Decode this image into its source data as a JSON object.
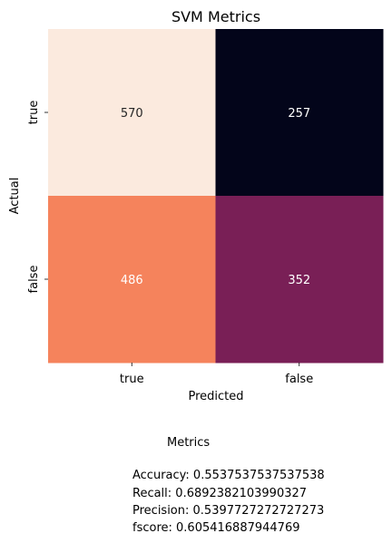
{
  "chart_data": {
    "type": "heatmap",
    "title": "SVM Metrics",
    "xlabel": "Predicted",
    "ylabel": "Actual",
    "x_categories": [
      "true",
      "false"
    ],
    "y_categories": [
      "true",
      "false"
    ],
    "values": [
      [
        570,
        257
      ],
      [
        486,
        352
      ]
    ],
    "colors": [
      [
        "#fbeade",
        "#03051a"
      ],
      [
        "#f5835c",
        "#791f56"
      ]
    ],
    "annotation_colors": [
      [
        "#262626",
        "#ffffff"
      ],
      [
        "#ffffff",
        "#ffffff"
      ]
    ],
    "colorbar": false
  },
  "metrics": {
    "title": "Metrics",
    "lines": [
      "Accuracy: 0.5537537537537538",
      "Recall: 0.6892382103990327",
      "Precision: 0.5397727272727273",
      "fscore: 0.605416887944769"
    ]
  }
}
